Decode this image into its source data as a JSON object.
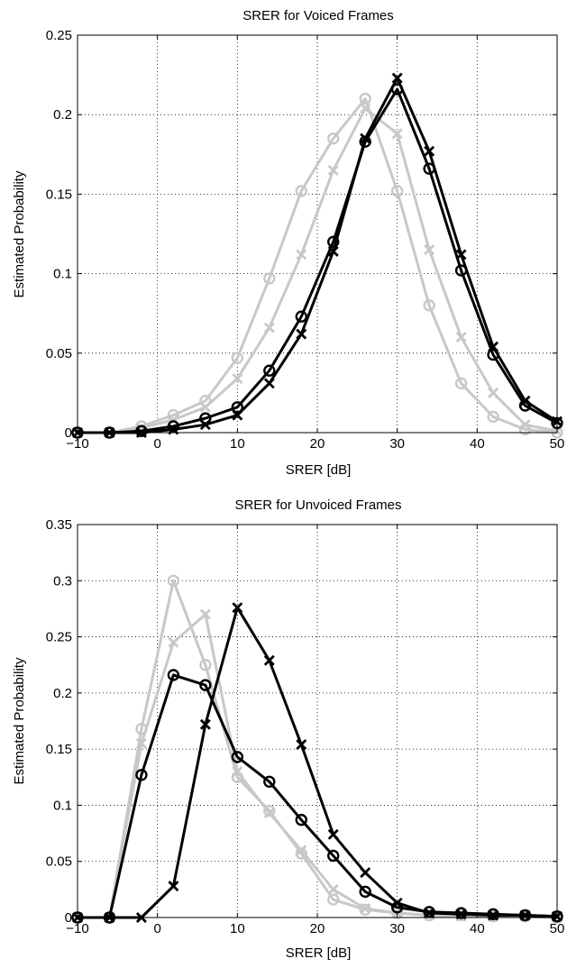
{
  "chart_data": [
    {
      "type": "line",
      "title": "SRER for Voiced Frames",
      "xlabel": "SRER [dB]",
      "ylabel": "Estimated Probability",
      "xlim": [
        -10,
        50
      ],
      "ylim": [
        0,
        0.25
      ],
      "xticks": [
        -10,
        0,
        10,
        20,
        30,
        40,
        50
      ],
      "xtick_labels": [
        "−10",
        "0",
        "10",
        "20",
        "30",
        "40",
        "50"
      ],
      "yticks": [
        0,
        0.05,
        0.1,
        0.15,
        0.2,
        0.25
      ],
      "ytick_labels": [
        "0",
        "0.05",
        "0.1",
        "0.15",
        "0.2",
        "0.25"
      ],
      "grid": true,
      "legend": "none",
      "x": [
        -10,
        -6,
        -2,
        2,
        6,
        10,
        14,
        18,
        22,
        26,
        30,
        34,
        38,
        42,
        46,
        50
      ],
      "series": [
        {
          "color": "#c8c8c8",
          "marker": "o",
          "values": [
            0,
            0,
            0.004,
            0.011,
            0.02,
            0.047,
            0.097,
            0.152,
            0.185,
            0.21,
            0.152,
            0.08,
            0.031,
            0.01,
            0.002,
            0
          ]
        },
        {
          "color": "#c8c8c8",
          "marker": "x",
          "values": [
            0,
            0,
            0.003,
            0.008,
            0.016,
            0.034,
            0.066,
            0.112,
            0.165,
            0.204,
            0.188,
            0.115,
            0.06,
            0.025,
            0.005,
            0.001
          ]
        },
        {
          "color": "#000000",
          "marker": "o",
          "values": [
            0,
            0,
            0.001,
            0.004,
            0.009,
            0.016,
            0.039,
            0.073,
            0.12,
            0.183,
            0.216,
            0.166,
            0.102,
            0.049,
            0.017,
            0.006
          ]
        },
        {
          "color": "#000000",
          "marker": "x",
          "values": [
            0,
            0,
            0,
            0.002,
            0.005,
            0.011,
            0.031,
            0.062,
            0.114,
            0.185,
            0.223,
            0.177,
            0.112,
            0.054,
            0.02,
            0.007
          ]
        }
      ]
    },
    {
      "type": "line",
      "title": "SRER for Unvoiced Frames",
      "xlabel": "SRER [dB]",
      "ylabel": "Estimated Probability",
      "xlim": [
        -10,
        50
      ],
      "ylim": [
        0,
        0.35
      ],
      "xticks": [
        -10,
        0,
        10,
        20,
        30,
        40,
        50
      ],
      "xtick_labels": [
        "−10",
        "0",
        "10",
        "20",
        "30",
        "40",
        "50"
      ],
      "yticks": [
        0,
        0.05,
        0.1,
        0.15,
        0.2,
        0.25,
        0.3,
        0.35
      ],
      "ytick_labels": [
        "0",
        "0.05",
        "0.1",
        "0.15",
        "0.2",
        "0.25",
        "0.3",
        "0.35"
      ],
      "grid": true,
      "legend": "none",
      "x": [
        -10,
        -6,
        -2,
        2,
        6,
        10,
        14,
        18,
        22,
        26,
        30,
        34,
        38,
        42,
        46,
        50
      ],
      "series": [
        {
          "color": "#c8c8c8",
          "marker": "o",
          "values": [
            0,
            0,
            0.168,
            0.3,
            0.225,
            0.125,
            0.095,
            0.057,
            0.016,
            0.007,
            0.004,
            0.002,
            0.002,
            0.001,
            0.001,
            0
          ]
        },
        {
          "color": "#c8c8c8",
          "marker": "x",
          "values": [
            0,
            0,
            0.155,
            0.245,
            0.27,
            0.13,
            0.093,
            0.06,
            0.025,
            0.008,
            0.004,
            0.002,
            0.001,
            0.001,
            0.001,
            0
          ]
        },
        {
          "color": "#000000",
          "marker": "o",
          "values": [
            0,
            0,
            0.127,
            0.216,
            0.207,
            0.143,
            0.121,
            0.087,
            0.055,
            0.023,
            0.009,
            0.005,
            0.004,
            0.003,
            0.002,
            0.001
          ]
        },
        {
          "color": "#000000",
          "marker": "x",
          "values": [
            0,
            0,
            0,
            0.028,
            0.172,
            0.276,
            0.229,
            0.154,
            0.074,
            0.04,
            0.013,
            0.004,
            0.003,
            0.002,
            0.002,
            0.001
          ]
        }
      ]
    }
  ]
}
